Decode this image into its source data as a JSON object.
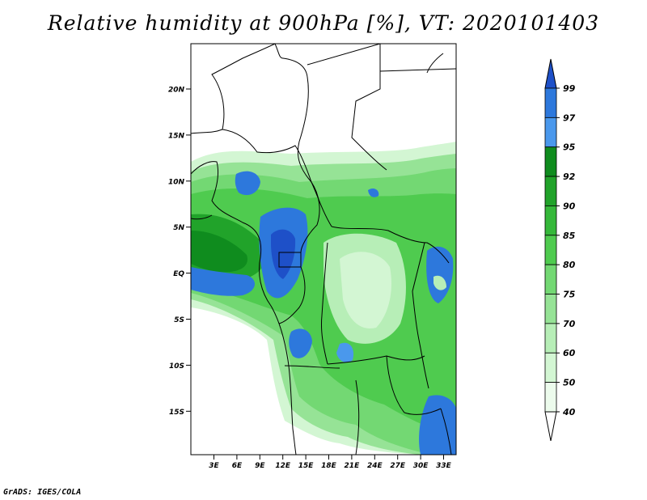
{
  "title": "Relative humidity at 900hPa [%], VT: 2020101403",
  "credit": "GrADS: IGES/COLA",
  "map": {
    "lat_ticks": [
      "20N",
      "15N",
      "10N",
      "5N",
      "EQ",
      "5S",
      "10S",
      "15S"
    ],
    "lon_ticks": [
      "3E",
      "6E",
      "9E",
      "12E",
      "15E",
      "18E",
      "21E",
      "24E",
      "27E",
      "30E",
      "33E"
    ]
  },
  "colorbar": {
    "levels": [
      "99",
      "97",
      "95",
      "92",
      "90",
      "85",
      "80",
      "75",
      "70",
      "60",
      "50",
      "40"
    ],
    "colors": [
      "#1e50c8",
      "#2d78dc",
      "#4a98ec",
      "#0f8c1e",
      "#21a32a",
      "#35b83a",
      "#4fcb4f",
      "#73d873",
      "#96e396",
      "#b7eeb7",
      "#d3f6d3",
      "#ecfbec",
      "#ffffff"
    ]
  }
}
